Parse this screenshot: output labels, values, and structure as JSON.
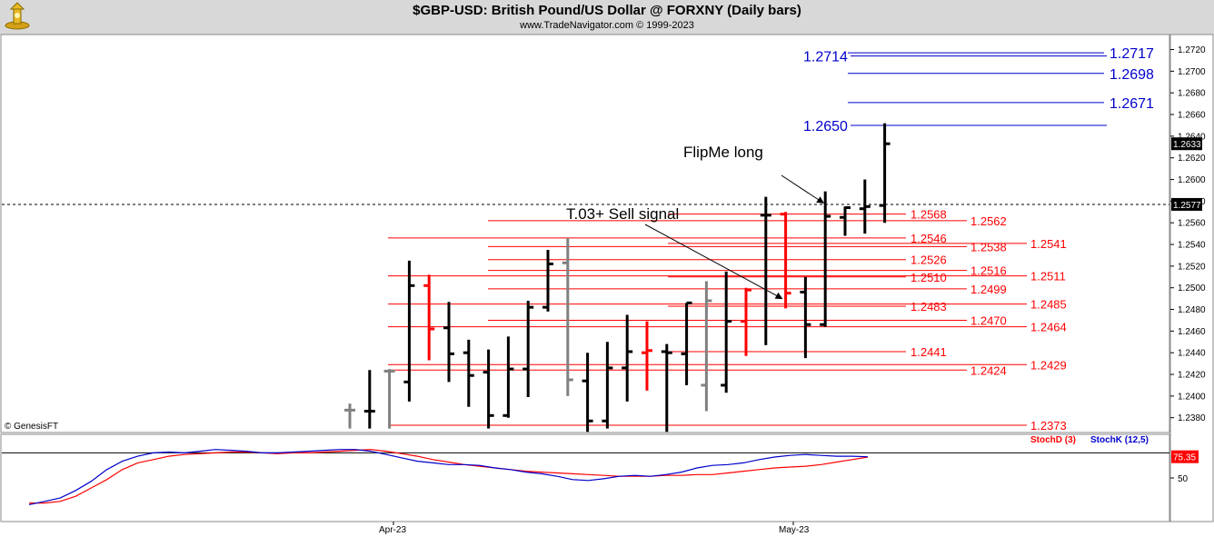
{
  "header": {
    "title": "$GBP-USD:  British Pound/US Dollar @ FORXNY  (Daily bars)",
    "subtitle": "www.TradeNavigator.com © 1999-2023",
    "logo_icon": "trade-navigator-logo-icon"
  },
  "chart_data": [
    {
      "type": "ohlc",
      "ylim": [
        1.2368,
        1.2728
      ],
      "y_ticks": [
        "1.2380",
        "1.2400",
        "1.2420",
        "1.2440",
        "1.2460",
        "1.2480",
        "1.2500",
        "1.2520",
        "1.2540",
        "1.2560",
        "1.2580",
        "1.2600",
        "1.2620",
        "1.2640",
        "1.2660",
        "1.2680",
        "1.2700",
        "1.2720"
      ],
      "x_labels": [
        "Apr-23",
        "May-23"
      ],
      "watermark": "© GenesisFT",
      "last_price_label": "1.2633",
      "crosshair_label": "1.2577",
      "crosshair_value": 1.2577,
      "bar_colors": {
        "black": "#000000",
        "red": "#ff0000",
        "gray": "#808080"
      },
      "bars": [
        {
          "o": 1.2387,
          "h": 1.2393,
          "l": 1.237,
          "c": 1.2387,
          "color": "gray"
        },
        {
          "o": 1.2386,
          "h": 1.2424,
          "l": 1.237,
          "c": 1.2386,
          "color": "black"
        },
        {
          "o": 1.2423,
          "h": 1.2425,
          "l": 1.237,
          "c": 1.2423,
          "color": "gray"
        },
        {
          "o": 1.2413,
          "h": 1.2525,
          "l": 1.2395,
          "c": 1.2502,
          "color": "black"
        },
        {
          "o": 1.2502,
          "h": 1.2512,
          "l": 1.2433,
          "c": 1.2462,
          "color": "red"
        },
        {
          "o": 1.2463,
          "h": 1.2487,
          "l": 1.2413,
          "c": 1.2439,
          "color": "black"
        },
        {
          "o": 1.244,
          "h": 1.2452,
          "l": 1.239,
          "c": 1.2419,
          "color": "black"
        },
        {
          "o": 1.2422,
          "h": 1.2443,
          "l": 1.237,
          "c": 1.2382,
          "color": "black"
        },
        {
          "o": 1.2382,
          "h": 1.2455,
          "l": 1.238,
          "c": 1.2425,
          "color": "black"
        },
        {
          "o": 1.2425,
          "h": 1.2488,
          "l": 1.2399,
          "c": 1.2482,
          "color": "black"
        },
        {
          "o": 1.2482,
          "h": 1.2535,
          "l": 1.2478,
          "c": 1.2522,
          "color": "black"
        },
        {
          "o": 1.2523,
          "h": 1.2546,
          "l": 1.24,
          "c": 1.2415,
          "color": "gray"
        },
        {
          "o": 1.2414,
          "h": 1.244,
          "l": 1.2367,
          "c": 1.2377,
          "color": "black"
        },
        {
          "o": 1.2377,
          "h": 1.245,
          "l": 1.237,
          "c": 1.2426,
          "color": "black"
        },
        {
          "o": 1.2426,
          "h": 1.2475,
          "l": 1.2395,
          "c": 1.2441,
          "color": "black"
        },
        {
          "o": 1.244,
          "h": 1.2469,
          "l": 1.2405,
          "c": 1.2442,
          "color": "red"
        },
        {
          "o": 1.2441,
          "h": 1.2448,
          "l": 1.2367,
          "c": 1.244,
          "color": "black"
        },
        {
          "o": 1.2439,
          "h": 1.2486,
          "l": 1.241,
          "c": 1.2486,
          "color": "black"
        },
        {
          "o": 1.241,
          "h": 1.2506,
          "l": 1.2386,
          "c": 1.2488,
          "color": "gray"
        },
        {
          "o": 1.241,
          "h": 1.2515,
          "l": 1.2403,
          "c": 1.2469,
          "color": "black"
        },
        {
          "o": 1.2469,
          "h": 1.25,
          "l": 1.2437,
          "c": 1.2498,
          "color": "red"
        },
        {
          "o": 1.2567,
          "h": 1.2584,
          "l": 1.2447,
          "c": 1.2567,
          "color": "black"
        },
        {
          "o": 1.2568,
          "h": 1.257,
          "l": 1.2481,
          "c": 1.2495,
          "color": "red"
        },
        {
          "o": 1.2496,
          "h": 1.251,
          "l": 1.2435,
          "c": 1.2466,
          "color": "black"
        },
        {
          "o": 1.2466,
          "h": 1.2589,
          "l": 1.2464,
          "c": 1.2566,
          "color": "black"
        },
        {
          "o": 1.2565,
          "h": 1.2575,
          "l": 1.2548,
          "c": 1.2574,
          "color": "black"
        },
        {
          "o": 1.2573,
          "h": 1.26,
          "l": 1.255,
          "c": 1.2575,
          "color": "black"
        },
        {
          "o": 1.2576,
          "h": 1.2652,
          "l": 1.256,
          "c": 1.2633,
          "color": "black"
        }
      ],
      "red_levels": [
        {
          "value": 1.2568,
          "label": "1.2568",
          "label_col": "left"
        },
        {
          "value": 1.2562,
          "label": "1.2562",
          "label_col": "mid"
        },
        {
          "value": 1.2546,
          "label": "1.2546",
          "label_col": "left"
        },
        {
          "value": 1.2541,
          "label": "1.2541",
          "label_col": "right"
        },
        {
          "value": 1.2538,
          "label": "1.2538",
          "label_col": "mid"
        },
        {
          "value": 1.2526,
          "label": "1.2526",
          "label_col": "left"
        },
        {
          "value": 1.2516,
          "label": "1.2516",
          "label_col": "mid"
        },
        {
          "value": 1.2511,
          "label": "1.2511",
          "label_col": "right"
        },
        {
          "value": 1.251,
          "label": "1.2510",
          "label_col": "left"
        },
        {
          "value": 1.2499,
          "label": "1.2499",
          "label_col": "mid"
        },
        {
          "value": 1.2485,
          "label": "1.2485",
          "label_col": "right"
        },
        {
          "value": 1.2483,
          "label": "1.2483",
          "label_col": "left"
        },
        {
          "value": 1.247,
          "label": "1.2470",
          "label_col": "mid"
        },
        {
          "value": 1.2464,
          "label": "1.2464",
          "label_col": "right"
        },
        {
          "value": 1.2441,
          "label": "1.2441",
          "label_col": "left"
        },
        {
          "value": 1.2429,
          "label": "1.2429",
          "label_col": "right"
        },
        {
          "value": 1.2424,
          "label": "1.2424",
          "label_col": "mid"
        },
        {
          "value": 1.2373,
          "label": "1.2373",
          "label_col": "right"
        }
      ],
      "blue_levels": [
        {
          "value": 1.2717,
          "label": "1.2717",
          "label_side": "right"
        },
        {
          "value": 1.2714,
          "label": "1.2714",
          "label_side": "left"
        },
        {
          "value": 1.2698,
          "label": "1.2698",
          "label_side": "right"
        },
        {
          "value": 1.2671,
          "label": "1.2671",
          "label_side": "right"
        },
        {
          "value": 1.265,
          "label": "1.2650",
          "label_side": "left"
        }
      ],
      "level_colors": {
        "red": "#ff0000",
        "blue": "#0000cc"
      },
      "annotations": [
        {
          "text": "FlipMe long",
          "target_bar": 24,
          "target_value": 1.258
        },
        {
          "text": "T.03+ Sell signal",
          "target_bar": 22,
          "target_value": 1.249
        }
      ]
    },
    {
      "type": "line",
      "ylim": [
        0,
        100
      ],
      "y_ticks": [
        "50"
      ],
      "reference_line": 80,
      "value_label": "75.35",
      "series": [
        {
          "name": "StochD (3)",
          "color": "#ff0000",
          "values": [
            20,
            20,
            22,
            28,
            38,
            48,
            60,
            68,
            72,
            76,
            78,
            79,
            80,
            81,
            81,
            80,
            79,
            80,
            80,
            81,
            82,
            83,
            84,
            82,
            79,
            76,
            72,
            69,
            66,
            64,
            62,
            60,
            58,
            57,
            56,
            55,
            54,
            53,
            52,
            52,
            52,
            53,
            53,
            54,
            54,
            56,
            58,
            60,
            62,
            63,
            64,
            66,
            69,
            72,
            75
          ]
        },
        {
          "name": "StochK (12,5)",
          "color": "#0000cc",
          "values": [
            18,
            22,
            26,
            35,
            46,
            60,
            70,
            76,
            80,
            81,
            80,
            82,
            84,
            83,
            82,
            80,
            80,
            81,
            82,
            83,
            84,
            84,
            82,
            78,
            74,
            70,
            68,
            66,
            66,
            65,
            62,
            60,
            57,
            55,
            52,
            48,
            47,
            49,
            52,
            53,
            52,
            54,
            57,
            62,
            65,
            66,
            68,
            72,
            75,
            77,
            78,
            77,
            76,
            76,
            75.35
          ]
        }
      ]
    }
  ]
}
